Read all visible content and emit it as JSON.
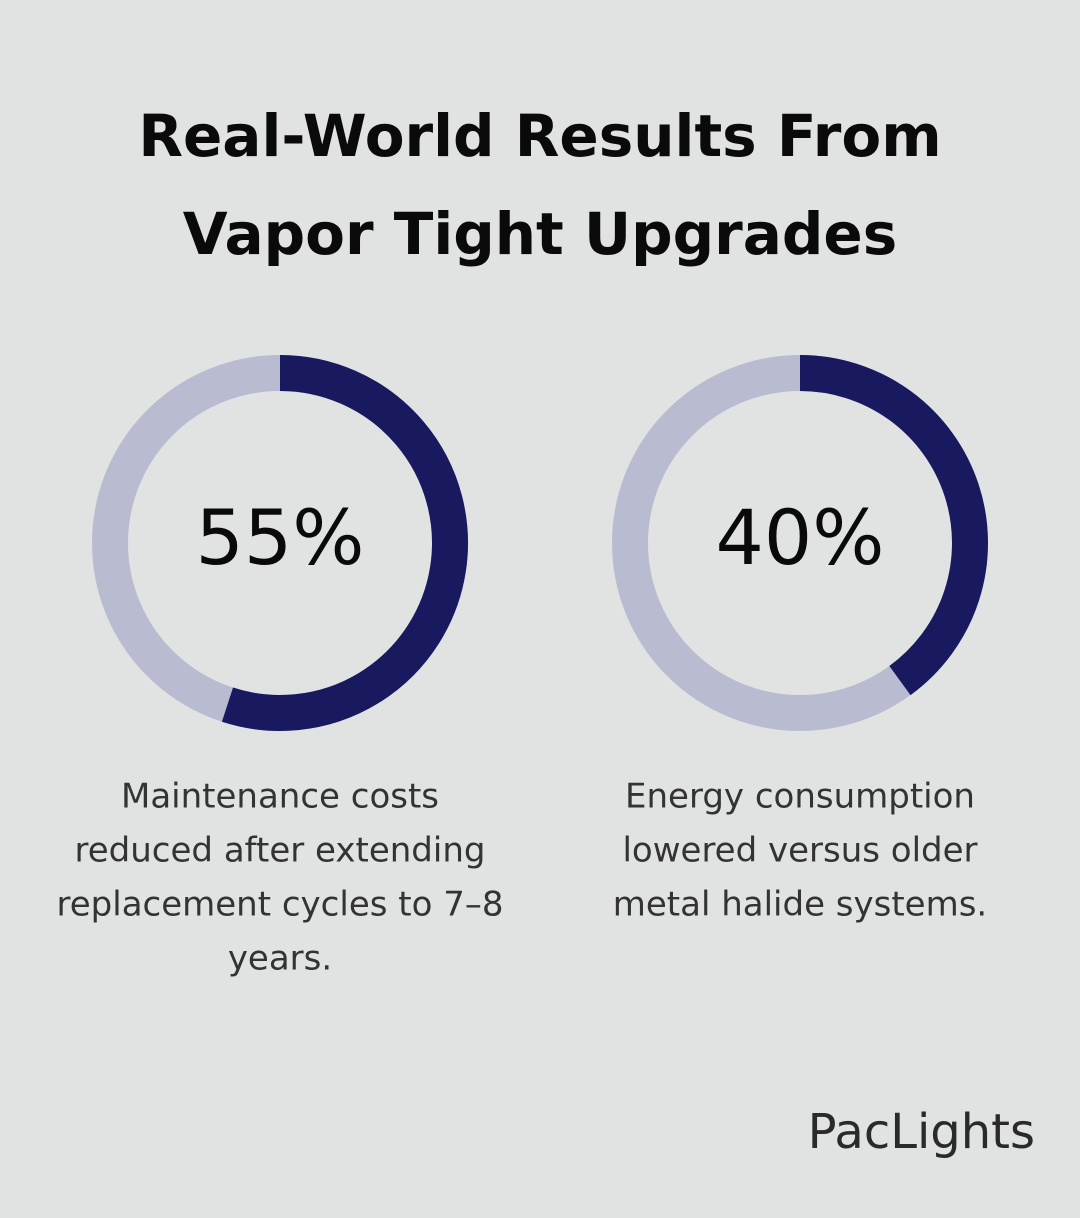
{
  "title": [
    "Real-World Results From",
    "Vapor Tight Upgrades"
  ],
  "chart_data": [
    {
      "type": "donut",
      "values": [
        55
      ],
      "value_labels": [
        "55%"
      ],
      "color": "#191960",
      "track_color": "#b9bbd1",
      "caption": [
        "Maintenance costs",
        "reduced after extending",
        "replacement cycles to 7–8",
        "years."
      ]
    },
    {
      "type": "donut",
      "values": [
        40
      ],
      "value_labels": [
        "40%"
      ],
      "color": "#191960",
      "track_color": "#b9bbd1",
      "caption": [
        "Energy consumption",
        "lowered versus older",
        "metal halide systems."
      ]
    }
  ],
  "brand": "PacLights"
}
